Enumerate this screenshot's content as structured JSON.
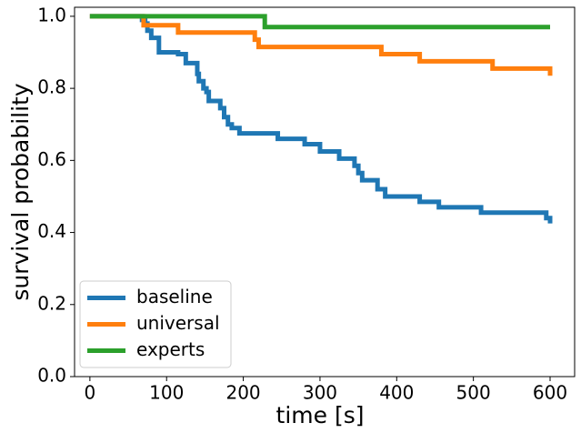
{
  "chart_data": {
    "type": "line",
    "step": "post",
    "xlabel": "time [s]",
    "ylabel": "survival probability",
    "xlim": [
      -20,
      632
    ],
    "ylim": [
      0,
      1.025
    ],
    "xticks": [
      0,
      100,
      200,
      300,
      400,
      500,
      600
    ],
    "yticks": [
      {
        "value": 0,
        "label": "0.0"
      },
      0.2,
      0.4,
      0.6,
      0.8,
      {
        "value": 1,
        "label": "1.0"
      }
    ],
    "legend": "lower left",
    "series": [
      {
        "name": "baseline",
        "color": "#1f77b4",
        "x": [
          0,
          68,
          72,
          75,
          80,
          90,
          115,
          125,
          140,
          142,
          148,
          152,
          155,
          170,
          175,
          180,
          185,
          195,
          245,
          280,
          300,
          325,
          345,
          350,
          355,
          375,
          385,
          430,
          455,
          510,
          595,
          600
        ],
        "values": [
          1.0,
          0.99,
          0.98,
          0.96,
          0.94,
          0.9,
          0.895,
          0.87,
          0.84,
          0.82,
          0.8,
          0.79,
          0.765,
          0.745,
          0.72,
          0.7,
          0.69,
          0.675,
          0.66,
          0.645,
          0.625,
          0.605,
          0.585,
          0.565,
          0.545,
          0.52,
          0.5,
          0.485,
          0.47,
          0.455,
          0.44,
          0.425
        ]
      },
      {
        "name": "universal",
        "color": "#ff7f0e",
        "x": [
          0,
          70,
          115,
          215,
          220,
          380,
          430,
          525,
          600
        ],
        "values": [
          1.0,
          0.975,
          0.955,
          0.935,
          0.915,
          0.895,
          0.875,
          0.855,
          0.835
        ]
      },
      {
        "name": "experts",
        "color": "#2ca02c",
        "x": [
          0,
          228,
          600
        ],
        "values": [
          1.0,
          0.97,
          0.97
        ]
      }
    ]
  }
}
